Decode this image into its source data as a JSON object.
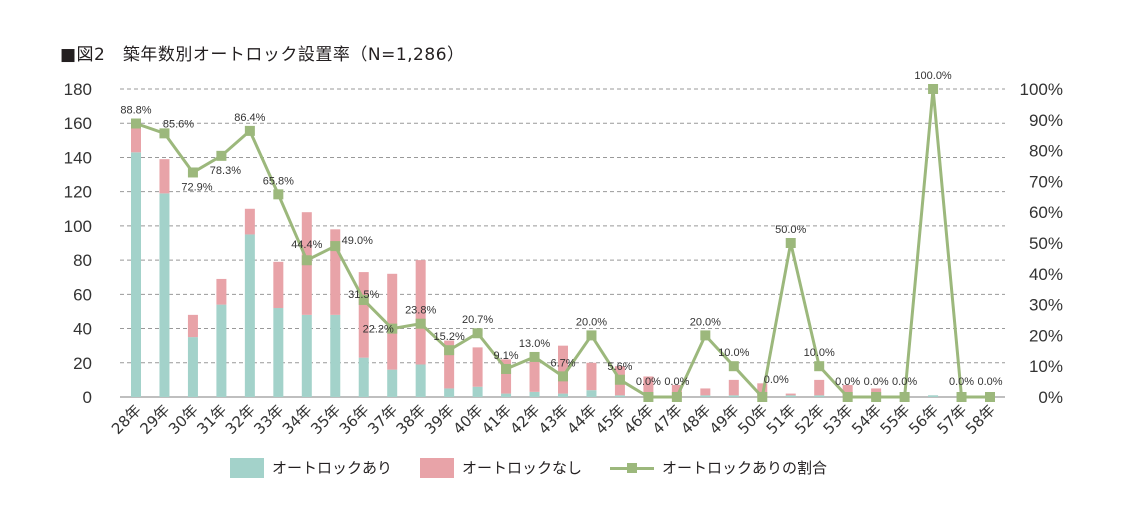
{
  "title": "■図2　築年数別オートロック設置率（N=1,286）",
  "colors": {
    "with_lock": "#a3d2ca",
    "without_lock": "#e8a3a8",
    "ratio_line": "#9cb87c",
    "grid": "#999999",
    "axis": "#aaaaaa"
  },
  "legend": {
    "with_lock": "オートロックあり",
    "without_lock": "オートロックなし",
    "ratio": "オートロックありの割合"
  },
  "chart_data": {
    "type": "bar",
    "title": "■図2　築年数別オートロック設置率（N=1,286）",
    "categories": [
      "28年",
      "29年",
      "30年",
      "31年",
      "32年",
      "33年",
      "34年",
      "35年",
      "36年",
      "37年",
      "38年",
      "39年",
      "40年",
      "41年",
      "42年",
      "43年",
      "44年",
      "45年",
      "46年",
      "47年",
      "48年",
      "49年",
      "50年",
      "51年",
      "52年",
      "53年",
      "54年",
      "55年",
      "56年",
      "57年",
      "58年"
    ],
    "series": [
      {
        "name": "オートロックあり",
        "type": "bar",
        "stack": "total",
        "axis": "left",
        "values": [
          143,
          119,
          35,
          54,
          95,
          52,
          48,
          48,
          23,
          16,
          19,
          5,
          6,
          2,
          3,
          2,
          4,
          1,
          0,
          0,
          1,
          1,
          0,
          1,
          1,
          0,
          0,
          0,
          1,
          0,
          0
        ]
      },
      {
        "name": "オートロックなし",
        "type": "bar",
        "stack": "total",
        "axis": "left",
        "values": [
          18,
          20,
          13,
          15,
          15,
          27,
          60,
          50,
          50,
          56,
          61,
          28,
          23,
          20,
          20,
          28,
          16,
          17,
          12,
          7,
          4,
          9,
          8,
          1,
          9,
          7,
          5,
          1,
          0,
          0,
          0
        ]
      },
      {
        "name": "オートロックありの割合",
        "type": "line",
        "axis": "right",
        "values": [
          88.8,
          85.6,
          72.9,
          78.3,
          86.4,
          65.8,
          44.4,
          49.0,
          31.5,
          22.2,
          23.8,
          15.2,
          20.7,
          9.1,
          13.0,
          6.7,
          20.0,
          5.6,
          0.0,
          0.0,
          20.0,
          10.0,
          0.0,
          50.0,
          10.0,
          0.0,
          0.0,
          0.0,
          100.0,
          0.0,
          0.0
        ],
        "labels": [
          "88.8%",
          "85.6%",
          "72.9%",
          "78.3%",
          "86.4%",
          "65.8%",
          "44.4%",
          "49.0%",
          "31.5%",
          "22.2%",
          "23.8%",
          "15.2%",
          "20.7%",
          "9.1%",
          "13.0%",
          "6.7%",
          "20.0%",
          "5.6%",
          "0.0%",
          "0.0%",
          "20.0%",
          "10.0%",
          "0.0%",
          "50.0%",
          "10.0%",
          "0.0%",
          "0.0%",
          "0.0%",
          "100.0%",
          "0.0%",
          "0.0%"
        ]
      }
    ],
    "y_left": {
      "ylim": [
        0,
        180
      ],
      "ticks": [
        "0",
        "20",
        "40",
        "60",
        "80",
        "100",
        "120",
        "140",
        "160",
        "180"
      ]
    },
    "y_right": {
      "ylim": [
        0,
        100
      ],
      "ticks": [
        "0%",
        "10%",
        "20%",
        "30%",
        "40%",
        "50%",
        "60%",
        "70%",
        "80%",
        "90%",
        "100%"
      ]
    },
    "xlabel": "",
    "ylabel": "",
    "grid": true,
    "legend_position": "bottom"
  }
}
